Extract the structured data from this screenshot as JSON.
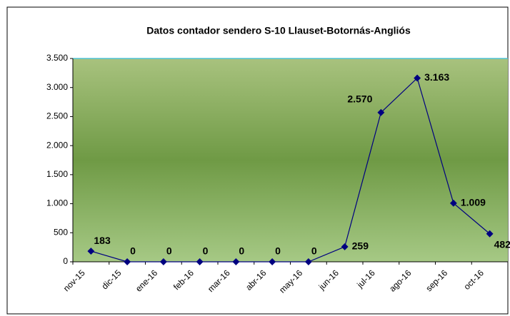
{
  "chart_data": {
    "type": "line",
    "title": "Datos contador sendero S-10 Llauset-Botornás-Angliós",
    "categories": [
      "nov-15",
      "dic-15",
      "ene-16",
      "feb-16",
      "mar-16",
      "abr-16",
      "may-16",
      "jun-16",
      "jul-16",
      "ago-16",
      "sep-16",
      "oct-16"
    ],
    "series": [
      {
        "name": "Datos contador",
        "color": "#000080",
        "values": [
          183,
          0,
          0,
          0,
          0,
          0,
          0,
          259,
          2570,
          3163,
          1009,
          482
        ],
        "value_labels": [
          "183",
          "0",
          "0",
          "0",
          "0",
          "0",
          "0",
          "259",
          "2.570",
          "3.163",
          "1.009",
          "482"
        ]
      }
    ],
    "ylim": [
      0,
      3500
    ],
    "yticks": [
      0,
      500,
      {
        "value": 1000,
        "label": "1.000"
      },
      {
        "value": 1500,
        "label": "1.500"
      },
      {
        "value": 2000,
        "label": "2.000"
      },
      {
        "value": 2500,
        "label": "2.500"
      },
      {
        "value": 3000,
        "label": "3.000"
      },
      {
        "value": 3500,
        "label": "3.500"
      }
    ],
    "grid": false
  }
}
